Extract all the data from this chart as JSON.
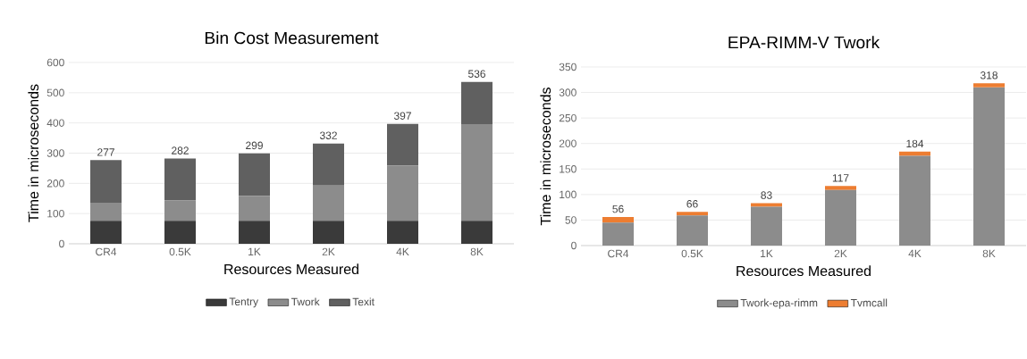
{
  "chart_data": [
    {
      "type": "bar",
      "title": "Bin Cost Measurement",
      "xlabel": "Resources Measured",
      "ylabel": "Time in microseconds",
      "categories": [
        "CR4",
        "0.5K",
        "1K",
        "2K",
        "4K",
        "8K"
      ],
      "stacked": true,
      "series": [
        {
          "name": "Tentry",
          "color": "#3a3a3a",
          "values": [
            76,
            76,
            76,
            76,
            76,
            76
          ]
        },
        {
          "name": "Twork",
          "color": "#8c8c8c",
          "values": [
            60,
            67,
            83,
            117,
            183,
            320
          ]
        },
        {
          "name": "Texit",
          "color": "#606060",
          "values": [
            141,
            139,
            140,
            139,
            138,
            140
          ]
        }
      ],
      "totals": [
        "277",
        "282",
        "299",
        "332",
        "397",
        "536"
      ],
      "ylim": [
        0,
        600
      ],
      "yticks": [
        0,
        100,
        200,
        300,
        400,
        500,
        600
      ],
      "grid": "y",
      "legend": "bottom"
    },
    {
      "type": "bar",
      "title": "EPA-RIMM-V Twork",
      "xlabel": "Resources Measured",
      "ylabel": "Time in microseconds",
      "categories": [
        "CR4",
        "0.5K",
        "1K",
        "2K",
        "4K",
        "8K"
      ],
      "stacked": true,
      "series": [
        {
          "name": "Twork-epa-rimm",
          "color": "#8c8c8c",
          "values": [
            45,
            59,
            76,
            109,
            176,
            310
          ]
        },
        {
          "name": "Tvmcall",
          "color": "#ed7d31",
          "values": [
            11,
            7,
            7,
            8,
            8,
            8
          ]
        }
      ],
      "totals": [
        "56",
        "66",
        "83",
        "117",
        "184",
        "318"
      ],
      "ylim": [
        0,
        350
      ],
      "yticks": [
        0,
        50,
        100,
        150,
        200,
        250,
        300,
        350
      ],
      "grid": "y",
      "legend": "bottom"
    }
  ]
}
